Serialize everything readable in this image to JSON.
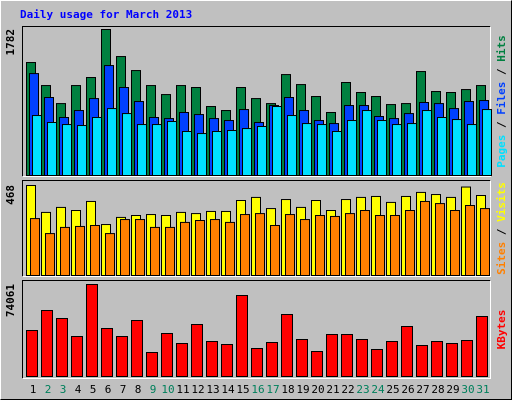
{
  "title": "Daily usage for March 2013",
  "chart_data": [
    {
      "type": "bar",
      "legend_separator": "/",
      "ylim": [
        0,
        1782
      ],
      "yticks": [
        1782
      ],
      "series": [
        {
          "name": "Hits",
          "color": "#008040",
          "values": [
            1379,
            1098,
            878,
            1098,
            1196,
            1782,
            1452,
            1281,
            1098,
            988,
            1098,
            1074,
            842,
            793,
            1074,
            939,
            878,
            1232,
            1110,
            964,
            769,
            1135,
            1013,
            964,
            866,
            878,
            1269,
            1025,
            1013,
            1049,
            1098
          ]
        },
        {
          "name": "Files",
          "color": "#0040ff",
          "values": [
            1244,
            952,
            708,
            793,
            939,
            1342,
            1074,
            903,
            708,
            695,
            769,
            744,
            695,
            671,
            805,
            647,
            854,
            952,
            793,
            671,
            634,
            854,
            854,
            720,
            695,
            756,
            891,
            878,
            817,
            903,
            915
          ]
        },
        {
          "name": "Pages",
          "color": "#00e0ff",
          "values": [
            732,
            647,
            622,
            610,
            708,
            817,
            756,
            622,
            622,
            659,
            537,
            512,
            537,
            549,
            573,
            598,
            842,
            732,
            634,
            622,
            537,
            671,
            793,
            671,
            622,
            634,
            793,
            708,
            683,
            622,
            805
          ]
        }
      ]
    },
    {
      "type": "bar",
      "legend_separator": "/",
      "ylim": [
        0,
        468
      ],
      "yticks": [
        468
      ],
      "series": [
        {
          "name": "Visits",
          "color": "#ffff00",
          "values": [
            468,
            328,
            354,
            338,
            385,
            265,
            302,
            312,
            317,
            312,
            328,
            322,
            333,
            333,
            390,
            406,
            348,
            395,
            354,
            390,
            338,
            395,
            406,
            411,
            380,
            411,
            432,
            421,
            406,
            460,
            416
          ]
        },
        {
          "name": "Sites",
          "color": "#ff8000",
          "values": [
            296,
            218,
            250,
            255,
            260,
            218,
            291,
            291,
            250,
            250,
            276,
            286,
            291,
            276,
            317,
            322,
            260,
            317,
            291,
            312,
            307,
            322,
            338,
            312,
            312,
            338,
            385,
            374,
            338,
            364,
            348
          ]
        }
      ]
    },
    {
      "type": "bar",
      "ylim": [
        0,
        74061
      ],
      "yticks": [
        74061
      ],
      "categories": [
        "1",
        "2",
        "3",
        "4",
        "5",
        "6",
        "7",
        "8",
        "9",
        "10",
        "11",
        "12",
        "13",
        "14",
        "15",
        "16",
        "17",
        "18",
        "19",
        "20",
        "21",
        "22",
        "23",
        "24",
        "25",
        "26",
        "27",
        "28",
        "29",
        "30",
        "31"
      ],
      "category_colors": [
        "#000000",
        "#00805c",
        "#00805c",
        "#000000",
        "#000000",
        "#000000",
        "#000000",
        "#000000",
        "#00805c",
        "#00805c",
        "#000000",
        "#000000",
        "#000000",
        "#000000",
        "#000000",
        "#00805c",
        "#00805c",
        "#000000",
        "#000000",
        "#000000",
        "#000000",
        "#000000",
        "#00805c",
        "#00805c",
        "#000000",
        "#000000",
        "#000000",
        "#000000",
        "#000000",
        "#00805c",
        "#00805c"
      ],
      "series": [
        {
          "name": "KBytes",
          "color": "#ff0000",
          "values": [
            37030,
            53130,
            46690,
            32200,
            74061,
            38640,
            32200,
            45080,
            19320,
            34615,
            26565,
            41860,
            28175,
            25760,
            65205,
            22540,
            27370,
            49910,
            29785,
            20125,
            33810,
            33810,
            29785,
            21735,
            28175,
            40250,
            24955,
            28175,
            26565,
            28980,
            48300
          ]
        }
      ]
    }
  ]
}
